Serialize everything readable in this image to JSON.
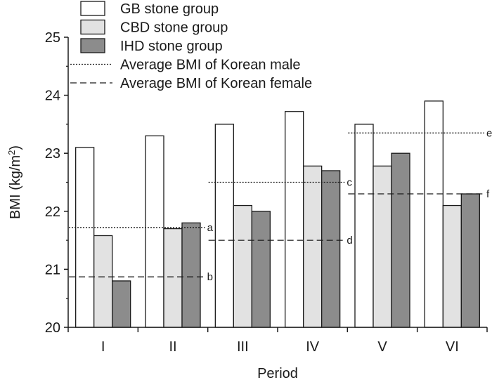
{
  "chart_data": {
    "type": "bar",
    "xlabel": "Period",
    "ylabel": "BMI (kg/m²)",
    "ylim": [
      20,
      25
    ],
    "yticks": [
      "20",
      "21",
      "22",
      "23",
      "24",
      "25"
    ],
    "categories": [
      "I",
      "II",
      "III",
      "IV",
      "V",
      "VI"
    ],
    "series": [
      {
        "name": "GB stone group",
        "values": [
          23.1,
          23.3,
          23.5,
          23.72,
          23.5,
          23.9
        ],
        "color": "#ffffff"
      },
      {
        "name": "CBD stone group",
        "values": [
          21.58,
          21.7,
          22.1,
          22.78,
          22.78,
          22.1
        ],
        "color": "#e2e2e2"
      },
      {
        "name": "IHD stone group",
        "values": [
          20.8,
          21.8,
          22.0,
          22.7,
          23.0,
          22.3
        ],
        "color": "#8c8c8c"
      }
    ],
    "reference_lines": [
      {
        "name": "Average BMI of Korean male",
        "style": "dotted",
        "segments": [
          {
            "label": "a",
            "value": 21.72,
            "categories": [
              "I",
              "II"
            ]
          },
          {
            "label": "c",
            "value": 22.5,
            "categories": [
              "III",
              "IV"
            ]
          },
          {
            "label": "e",
            "value": 23.35,
            "categories": [
              "V",
              "VI"
            ]
          }
        ]
      },
      {
        "name": "Average BMI of Korean female",
        "style": "dashed",
        "segments": [
          {
            "label": "b",
            "value": 20.87,
            "categories": [
              "I",
              "II"
            ]
          },
          {
            "label": "d",
            "value": 21.5,
            "categories": [
              "III",
              "IV"
            ]
          },
          {
            "label": "f",
            "value": 22.3,
            "categories": [
              "V",
              "VI"
            ]
          }
        ]
      }
    ],
    "legend_position": "top"
  }
}
